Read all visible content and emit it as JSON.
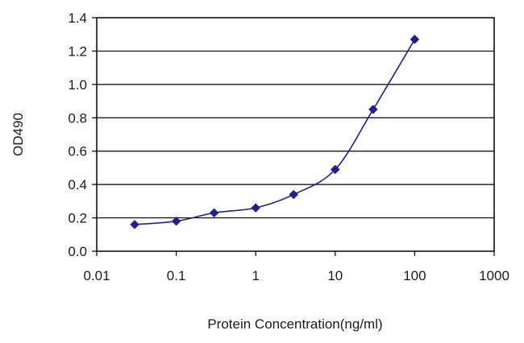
{
  "chart_data": {
    "type": "line",
    "title": "",
    "xlabel": "Protein Concentration(ng/ml)",
    "ylabel": "OD490",
    "x_scale": "log",
    "xlim": [
      0.01,
      1000
    ],
    "ylim": [
      0.0,
      1.4
    ],
    "x_ticks": [
      {
        "value": 0.01,
        "label": "0.01"
      },
      {
        "value": 0.1,
        "label": "0.1"
      },
      {
        "value": 1,
        "label": "1"
      },
      {
        "value": 10,
        "label": "10"
      },
      {
        "value": 100,
        "label": "100"
      },
      {
        "value": 1000,
        "label": "1000"
      }
    ],
    "y_ticks": [
      {
        "value": 0.0,
        "label": "0.0"
      },
      {
        "value": 0.2,
        "label": "0.2"
      },
      {
        "value": 0.4,
        "label": "0.4"
      },
      {
        "value": 0.6,
        "label": "0.6"
      },
      {
        "value": 0.8,
        "label": "0.8"
      },
      {
        "value": 1.0,
        "label": "1.0"
      },
      {
        "value": 1.2,
        "label": "1.2"
      },
      {
        "value": 1.4,
        "label": "1.4"
      }
    ],
    "grid": "horizontal",
    "series": [
      {
        "color": "#1f1f8f",
        "marker": "diamond",
        "x": [
          0.03,
          0.1,
          0.3,
          1,
          3,
          10,
          30,
          100
        ],
        "y": [
          0.16,
          0.18,
          0.23,
          0.26,
          0.34,
          0.49,
          0.85,
          1.27
        ]
      }
    ]
  }
}
